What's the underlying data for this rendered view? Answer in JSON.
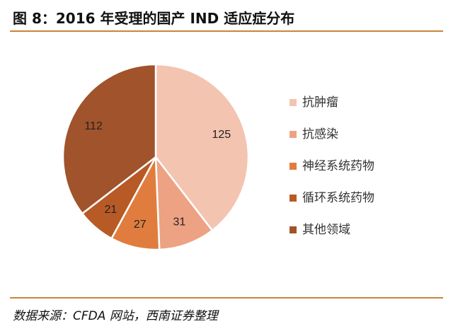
{
  "title": "图 8：2016 年受理的国产 IND 适应症分布",
  "source": "数据来源：CFDA 网站，西南证券整理",
  "chart_data": {
    "type": "pie",
    "start_angle": "12 o'clock",
    "direction": "clockwise",
    "legend_position": "right",
    "slices": [
      {
        "label": "抗肿瘤",
        "value": 125,
        "color": "#f3c4b0"
      },
      {
        "label": "抗感染",
        "value": 31,
        "color": "#eda283"
      },
      {
        "label": "神经系统药物",
        "value": 27,
        "color": "#e07d3e"
      },
      {
        "label": "循环系统药物",
        "value": 21,
        "color": "#b85a26"
      },
      {
        "label": "其他领域",
        "value": 112,
        "color": "#a1532b"
      }
    ]
  }
}
